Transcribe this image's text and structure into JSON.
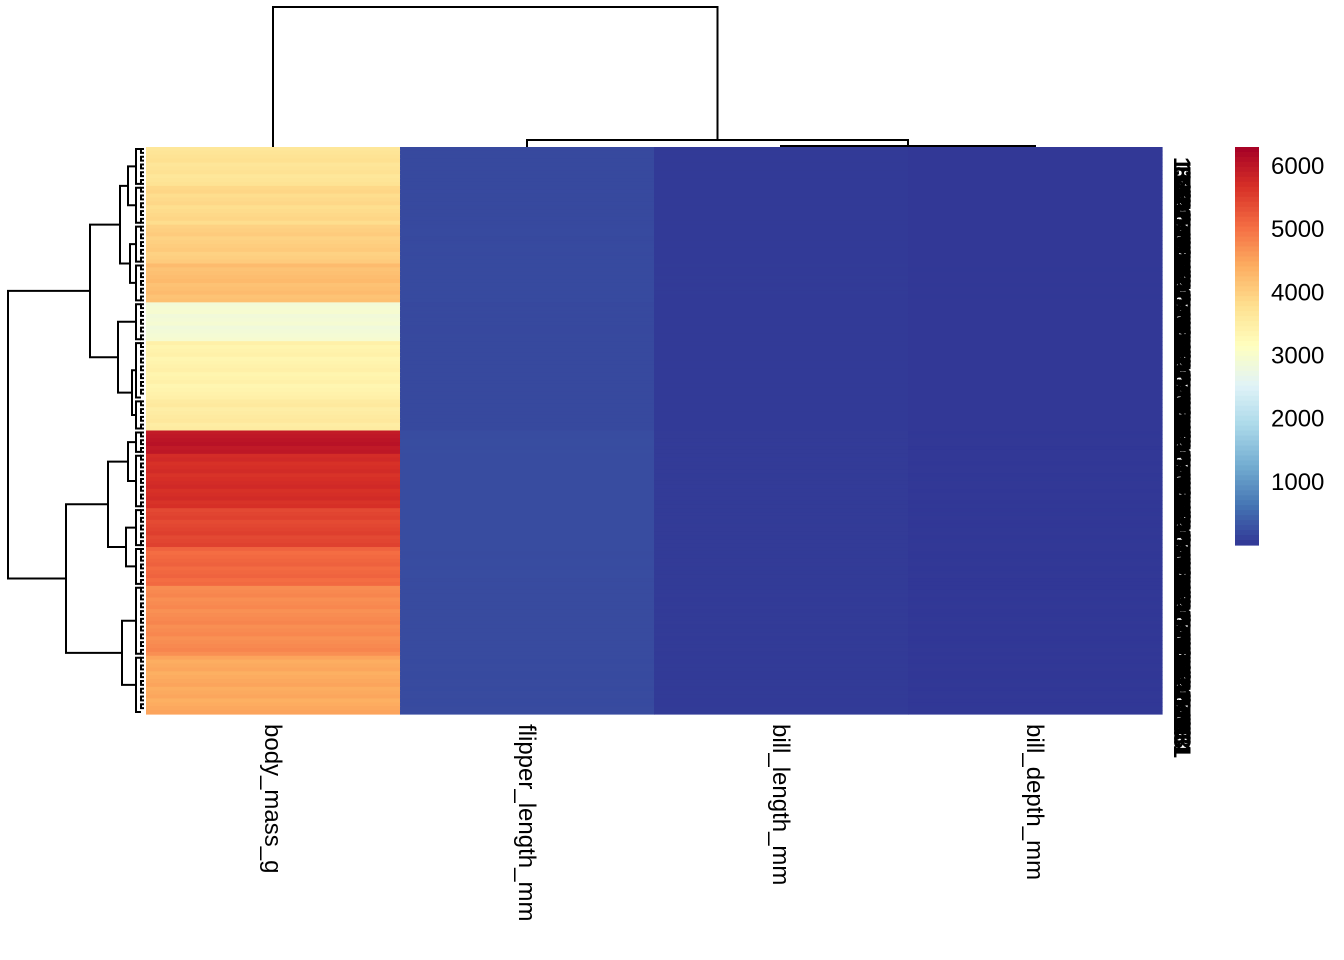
{
  "chart_data": {
    "type": "heatmap",
    "title": "",
    "columns": [
      "body_mass_g",
      "flipper_length_mm",
      "bill_length_mm",
      "bill_depth_mm"
    ],
    "column_dendrogram_order": [
      "body_mass_g",
      "flipper_length_mm",
      "bill_length_mm",
      "bill_depth_mm"
    ],
    "row_groups": [
      {
        "rows": 10,
        "values": [
          3700,
          190,
          39,
          18
        ]
      },
      {
        "rows": 10,
        "values": [
          3850,
          192,
          40,
          18
        ]
      },
      {
        "rows": 10,
        "values": [
          4000,
          195,
          42,
          18
        ]
      },
      {
        "rows": 10,
        "values": [
          4200,
          198,
          45,
          17
        ]
      },
      {
        "rows": 10,
        "values": [
          2900,
          185,
          37,
          18
        ]
      },
      {
        "rows": 15,
        "values": [
          3400,
          190,
          38,
          18
        ]
      },
      {
        "rows": 8,
        "values": [
          3550,
          191,
          40,
          18
        ]
      },
      {
        "rows": 6,
        "values": [
          6000,
          225,
          50,
          16
        ]
      },
      {
        "rows": 14,
        "values": [
          5700,
          222,
          49,
          16
        ]
      },
      {
        "rows": 10,
        "values": [
          5450,
          218,
          48,
          15
        ]
      },
      {
        "rows": 10,
        "values": [
          5100,
          215,
          47,
          15
        ]
      },
      {
        "rows": 18,
        "values": [
          4750,
          210,
          46,
          15
        ]
      },
      {
        "rows": 15,
        "values": [
          4450,
          205,
          45,
          15
        ]
      }
    ],
    "color_scale": {
      "min": 0,
      "max": 6300,
      "stops": [
        "#313695",
        "#4575b4",
        "#74add1",
        "#abd9e9",
        "#e0f3f8",
        "#ffffbf",
        "#fee090",
        "#fdae61",
        "#f46d43",
        "#d73027",
        "#a50026"
      ],
      "ticks": [
        1000,
        2000,
        3000,
        4000,
        5000,
        6000
      ]
    },
    "row_labels_overlapping": [
      "131",
      "150",
      "88",
      "164",
      "59",
      "22",
      "306",
      "84",
      "227",
      "101",
      "47",
      "270",
      "17",
      "309",
      "42",
      "293",
      "104"
    ]
  }
}
